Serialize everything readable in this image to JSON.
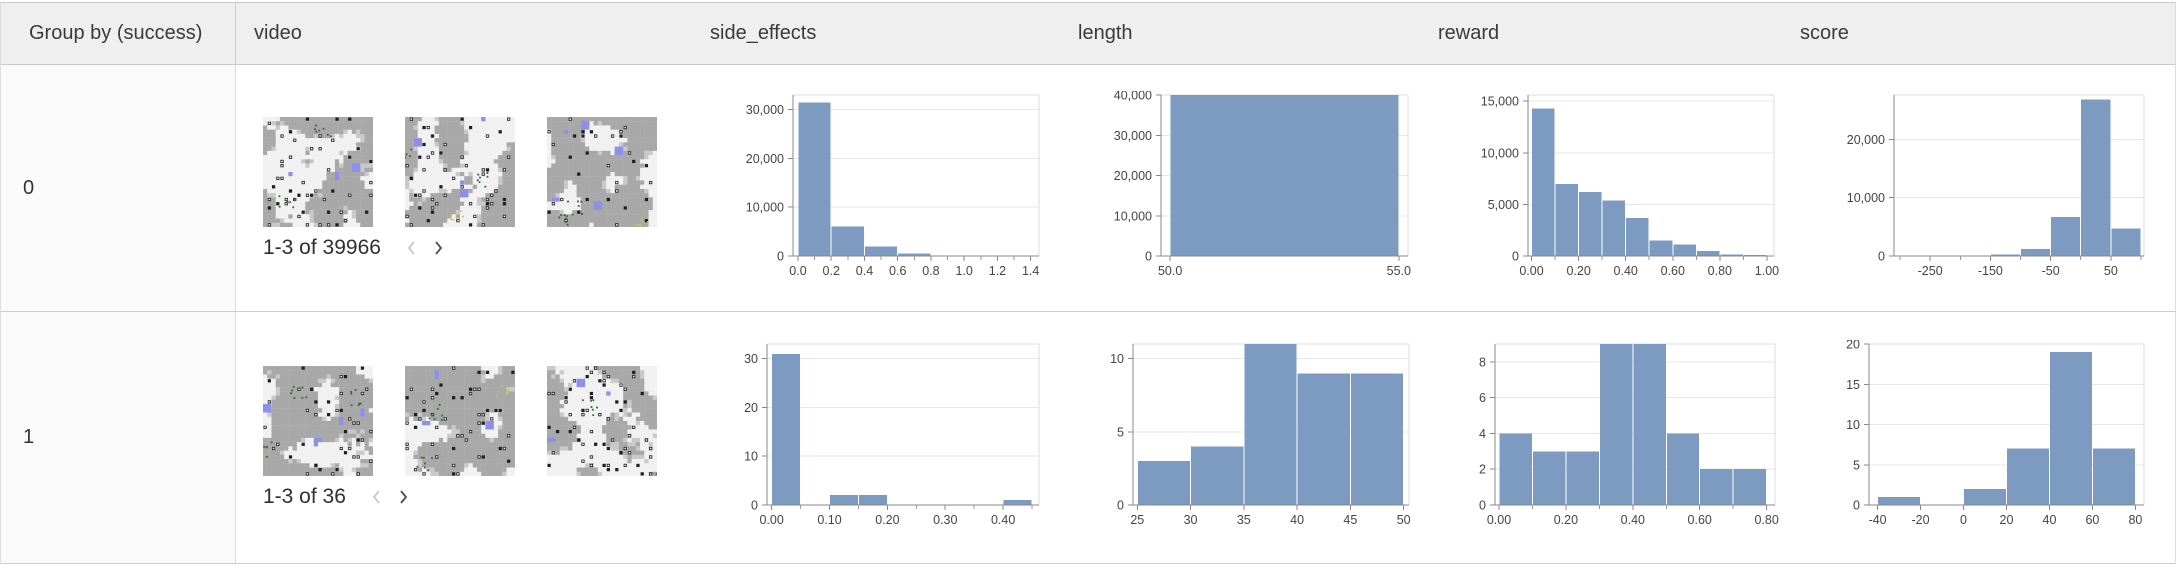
{
  "table": {
    "columns": [
      {
        "id": "group",
        "label": "Group by (success)"
      },
      {
        "id": "video",
        "label": "video"
      },
      {
        "id": "side_effects",
        "label": "side_effects"
      },
      {
        "id": "length",
        "label": "length"
      },
      {
        "id": "reward",
        "label": "reward"
      },
      {
        "id": "score",
        "label": "score"
      }
    ],
    "rows": [
      {
        "group_value": "0",
        "video": {
          "pagination": "1-3 of 39966",
          "prev_enabled": false,
          "next_enabled": true,
          "thumbnail_count": 3
        }
      },
      {
        "group_value": "1",
        "video": {
          "pagination": "1-3 of 36",
          "prev_enabled": false,
          "next_enabled": true,
          "thumbnail_count": 3
        }
      }
    ]
  },
  "colors": {
    "histogram_bar": "#7d9bc1",
    "header_bg": "#efefef",
    "group_col_bg": "#fafafa",
    "pager_disabled": "#c8c8c8",
    "pager_enabled": "#4d4d4d",
    "video_palette": {
      "white": "#f1f1f1",
      "grey": "#a8a8a8",
      "light": "#c9c9c9",
      "dark": "#1e1e1e",
      "blue": "#8d90e8",
      "green": "#2e6b2e",
      "yellow": "#cfc94a"
    }
  },
  "chart_data": [
    {
      "row": 0,
      "column": "side_effects",
      "type": "histogram",
      "bin_start": 0.0,
      "bin_width": 0.2,
      "counts": [
        31500,
        6000,
        1900,
        500,
        50,
        10,
        6
      ],
      "xlim": [
        -0.03,
        1.45
      ],
      "ylim": [
        0,
        33000
      ],
      "yticks": [
        [
          0,
          "0"
        ],
        [
          10000,
          "10,000"
        ],
        [
          20000,
          "20,000"
        ],
        [
          30000,
          "30,000"
        ]
      ],
      "xticks": [
        [
          0,
          "0.0"
        ],
        [
          0.2,
          "0.2"
        ],
        [
          0.4,
          "0.4"
        ],
        [
          0.6,
          "0.6"
        ],
        [
          0.8,
          "0.8"
        ],
        [
          1,
          "1.0"
        ],
        [
          1.2,
          "1.2"
        ],
        [
          1.4,
          "1.4"
        ]
      ],
      "xminor": [
        0.1,
        0.3,
        0.5,
        0.7,
        0.9,
        1.1,
        1.3
      ],
      "ml": 101,
      "pw": 246
    },
    {
      "row": 0,
      "column": "length",
      "type": "histogram",
      "bin_start": 50,
      "bin_width": 5,
      "counts": [
        39966
      ],
      "xlim": [
        49.8,
        55.2
      ],
      "ylim": [
        0,
        40000
      ],
      "yticks": [
        [
          0,
          "0"
        ],
        [
          10000,
          "10,000"
        ],
        [
          20000,
          "20,000"
        ],
        [
          30000,
          "30,000"
        ],
        [
          40000,
          "40,000"
        ]
      ],
      "xticks": [
        [
          50,
          "50.0"
        ],
        [
          55,
          "55.0"
        ]
      ],
      "xminor": [],
      "ml": 101,
      "pw": 247
    },
    {
      "row": 0,
      "column": "reward",
      "type": "histogram",
      "bin_start": 0,
      "bin_width": 0.1,
      "counts": [
        14300,
        7000,
        6200,
        5400,
        3700,
        1500,
        1100,
        500,
        166,
        100
      ],
      "xlim": [
        -0.015,
        1.03
      ],
      "ylim": [
        0,
        15600
      ],
      "yticks": [
        [
          0,
          "0"
        ],
        [
          5000,
          "5,000"
        ],
        [
          10000,
          "10,000"
        ],
        [
          15000,
          "15,000"
        ]
      ],
      "xticks": [
        [
          0,
          "0.00"
        ],
        [
          0.2,
          "0.20"
        ],
        [
          0.4,
          "0.40"
        ],
        [
          0.6,
          "0.60"
        ],
        [
          0.8,
          "0.80"
        ],
        [
          1,
          "1.00"
        ]
      ],
      "xminor": [
        0.1,
        0.3,
        0.5,
        0.7,
        0.9
      ],
      "ml": 108,
      "pw": 246
    },
    {
      "row": 0,
      "column": "score",
      "type": "histogram",
      "bin_start": -300,
      "bin_width": 50,
      "counts": [
        60,
        80,
        100,
        256,
        1200,
        6700,
        26870,
        4700
      ],
      "xlim": [
        -310,
        105
      ],
      "ylim": [
        0,
        27600
      ],
      "yticks": [
        [
          0,
          "0"
        ],
        [
          10000,
          "10,000"
        ],
        [
          20000,
          "20,000"
        ]
      ],
      "xticks": [
        [
          -250,
          "-250"
        ],
        [
          -150,
          "-150"
        ],
        [
          -50,
          "-50"
        ],
        [
          50,
          "50"
        ]
      ],
      "xminor": [
        -300,
        -200,
        -100,
        0,
        100
      ],
      "ml": 112,
      "pw": 250
    },
    {
      "row": 1,
      "column": "side_effects",
      "type": "histogram",
      "bin_start": 0,
      "bin_width": 0.05,
      "counts": [
        31,
        0,
        2,
        2,
        0,
        0,
        0,
        0,
        1
      ],
      "xlim": [
        -0.008,
        0.462
      ],
      "ylim": [
        0,
        33
      ],
      "yticks": [
        [
          0,
          "0"
        ],
        [
          10,
          "10"
        ],
        [
          20,
          "20"
        ],
        [
          30,
          "30"
        ]
      ],
      "xticks": [
        [
          0,
          "0.00"
        ],
        [
          0.1,
          "0.10"
        ],
        [
          0.2,
          "0.20"
        ],
        [
          0.3,
          "0.30"
        ],
        [
          0.4,
          "0.40"
        ]
      ],
      "xminor": [
        0.05,
        0.15,
        0.25,
        0.35,
        0.45
      ],
      "ml": 75,
      "pw": 272
    },
    {
      "row": 1,
      "column": "length",
      "type": "histogram",
      "bin_start": 25,
      "bin_width": 5,
      "counts": [
        3,
        4,
        11,
        9,
        9
      ],
      "xlim": [
        24.6,
        50.5
      ],
      "ylim": [
        0,
        11
      ],
      "yticks": [
        [
          0,
          "0"
        ],
        [
          5,
          "5"
        ],
        [
          10,
          "10"
        ]
      ],
      "xticks": [
        [
          25,
          "25"
        ],
        [
          30,
          "30"
        ],
        [
          35,
          "35"
        ],
        [
          40,
          "40"
        ],
        [
          45,
          "45"
        ],
        [
          50,
          "50"
        ]
      ],
      "xminor": [],
      "ml": 73,
      "pw": 276
    },
    {
      "row": 1,
      "column": "reward",
      "type": "histogram",
      "bin_start": 0,
      "bin_width": 0.1,
      "counts": [
        4,
        3,
        3,
        9,
        9,
        4,
        2,
        2
      ],
      "xlim": [
        -0.012,
        0.825
      ],
      "ylim": [
        0,
        9
      ],
      "yticks": [
        [
          0,
          "0"
        ],
        [
          2,
          "2"
        ],
        [
          4,
          "4"
        ],
        [
          6,
          "6"
        ],
        [
          8,
          "8"
        ]
      ],
      "xticks": [
        [
          0,
          "0.00"
        ],
        [
          0.2,
          "0.20"
        ],
        [
          0.4,
          "0.40"
        ],
        [
          0.6,
          "0.60"
        ],
        [
          0.8,
          "0.80"
        ]
      ],
      "xminor": [
        0.1,
        0.3,
        0.5,
        0.7
      ],
      "ml": 75,
      "pw": 280
    },
    {
      "row": 1,
      "column": "score",
      "type": "histogram",
      "bin_start": -40,
      "bin_width": 20,
      "counts": [
        1,
        0,
        2,
        7,
        19,
        7
      ],
      "xlim": [
        -44,
        84
      ],
      "ylim": [
        0,
        20
      ],
      "yticks": [
        [
          0,
          "0"
        ],
        [
          5,
          "5"
        ],
        [
          10,
          "10"
        ],
        [
          15,
          "15"
        ],
        [
          20,
          "20"
        ]
      ],
      "xticks": [
        [
          -40,
          "-40"
        ],
        [
          -20,
          "-20"
        ],
        [
          0,
          "0"
        ],
        [
          20,
          "20"
        ],
        [
          40,
          "40"
        ],
        [
          60,
          "60"
        ],
        [
          80,
          "80"
        ]
      ],
      "xminor": [],
      "ml": 87,
      "pw": 275
    }
  ]
}
